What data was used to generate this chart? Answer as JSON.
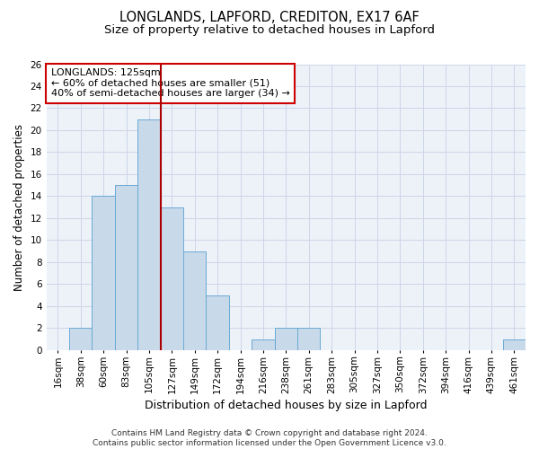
{
  "title1": "LONGLANDS, LAPFORD, CREDITON, EX17 6AF",
  "title2": "Size of property relative to detached houses in Lapford",
  "xlabel": "Distribution of detached houses by size in Lapford",
  "ylabel": "Number of detached properties",
  "categories": [
    "16sqm",
    "38sqm",
    "60sqm",
    "83sqm",
    "105sqm",
    "127sqm",
    "149sqm",
    "172sqm",
    "194sqm",
    "216sqm",
    "238sqm",
    "261sqm",
    "283sqm",
    "305sqm",
    "327sqm",
    "350sqm",
    "372sqm",
    "394sqm",
    "416sqm",
    "439sqm",
    "461sqm"
  ],
  "values": [
    0,
    2,
    14,
    15,
    21,
    13,
    9,
    5,
    0,
    1,
    2,
    2,
    0,
    0,
    0,
    0,
    0,
    0,
    0,
    0,
    1
  ],
  "bar_color": "#c8d9ea",
  "bar_edge_color": "#6aaad4",
  "highlight_line_color": "#aa0000",
  "annotation_box_text": "LONGLANDS: 125sqm\n← 60% of detached houses are smaller (51)\n40% of semi-detached houses are larger (34) →",
  "ylim": [
    0,
    26
  ],
  "yticks": [
    0,
    2,
    4,
    6,
    8,
    10,
    12,
    14,
    16,
    18,
    20,
    22,
    24,
    26
  ],
  "grid_color": "#ccd6e8",
  "background_color": "#edf2f9",
  "footer": "Contains HM Land Registry data © Crown copyright and database right 2024.\nContains public sector information licensed under the Open Government Licence v3.0.",
  "title1_fontsize": 10.5,
  "title2_fontsize": 9.5,
  "xlabel_fontsize": 9,
  "ylabel_fontsize": 8.5,
  "tick_fontsize": 7.5,
  "footer_fontsize": 6.5,
  "ann_fontsize": 8
}
